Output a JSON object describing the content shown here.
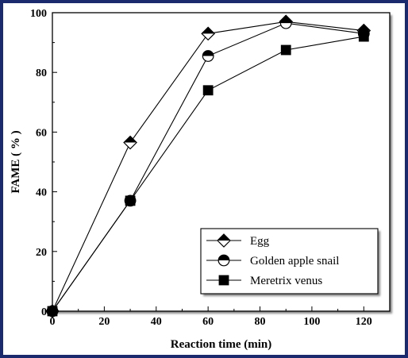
{
  "chart_data": {
    "type": "line",
    "title": "",
    "xlabel": "Reaction time (min)",
    "ylabel": "FAME ( % )",
    "xlim": [
      0,
      130
    ],
    "ylim": [
      0,
      100
    ],
    "xticks": [
      0,
      20,
      40,
      60,
      80,
      100,
      120
    ],
    "yticks": [
      0,
      20,
      40,
      60,
      80,
      100
    ],
    "grid": false,
    "legend_position": "bottom-right",
    "series": [
      {
        "name": "Egg",
        "marker": "half-filled-diamond",
        "x": [
          0,
          30,
          60,
          90,
          120
        ],
        "y": [
          0,
          56.5,
          93,
          97,
          94
        ]
      },
      {
        "name": "Golden apple snail",
        "marker": "half-filled-circle",
        "x": [
          0,
          30,
          60,
          90,
          120
        ],
        "y": [
          0,
          37,
          85.5,
          96.5,
          93
        ]
      },
      {
        "name": "Meretrix venus",
        "marker": "filled-square",
        "x": [
          0,
          30,
          60,
          90,
          120
        ],
        "y": [
          0,
          37,
          74,
          87.5,
          92
        ]
      }
    ],
    "colors": {
      "line": "#000000",
      "frame": "#1a2a6c"
    }
  }
}
